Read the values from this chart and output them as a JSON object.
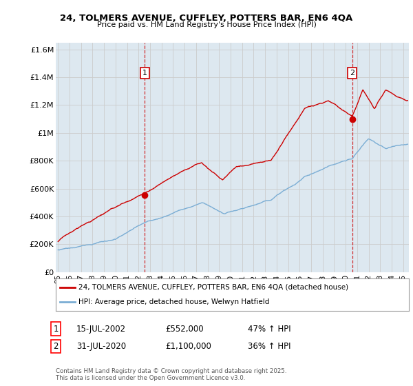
{
  "title_line1": "24, TOLMERS AVENUE, CUFFLEY, POTTERS BAR, EN6 4QA",
  "title_line2": "Price paid vs. HM Land Registry's House Price Index (HPI)",
  "ylabel_ticks": [
    "£0",
    "£200K",
    "£400K",
    "£600K",
    "£800K",
    "£1M",
    "£1.2M",
    "£1.4M",
    "£1.6M"
  ],
  "ylabel_values": [
    0,
    200000,
    400000,
    600000,
    800000,
    1000000,
    1200000,
    1400000,
    1600000
  ],
  "ylim": [
    0,
    1650000
  ],
  "xlim_start": 1994.8,
  "xlim_end": 2025.5,
  "grid_color": "#cccccc",
  "bg_color": "#dde8f0",
  "fig_bg_color": "#ffffff",
  "red_line_color": "#cc0000",
  "blue_line_color": "#7aadd4",
  "dashed_red_color": "#cc0000",
  "marker1_x": 2002.54,
  "marker1_y": 552000,
  "marker1_label": "1",
  "marker2_x": 2020.58,
  "marker2_y": 1100000,
  "marker2_label": "2",
  "legend_line1": "24, TOLMERS AVENUE, CUFFLEY, POTTERS BAR, EN6 4QA (detached house)",
  "legend_line2": "HPI: Average price, detached house, Welwyn Hatfield",
  "annotation1_date": "15-JUL-2002",
  "annotation1_price": "£552,000",
  "annotation1_hpi": "47% ↑ HPI",
  "annotation2_date": "31-JUL-2020",
  "annotation2_price": "£1,100,000",
  "annotation2_hpi": "36% ↑ HPI",
  "footer": "Contains HM Land Registry data © Crown copyright and database right 2025.\nThis data is licensed under the Open Government Licence v3.0.",
  "xtick_labels": [
    "95",
    "96",
    "97",
    "98",
    "99",
    "00",
    "01",
    "02",
    "03",
    "04",
    "05",
    "06",
    "07",
    "08",
    "09",
    "10",
    "11",
    "12",
    "13",
    "14",
    "15",
    "16",
    "17",
    "18",
    "19",
    "20",
    "21",
    "22",
    "23",
    "24",
    "25"
  ],
  "xtick_vals": [
    1995,
    1996,
    1997,
    1998,
    1999,
    2000,
    2001,
    2002,
    2003,
    2004,
    2005,
    2006,
    2007,
    2008,
    2009,
    2010,
    2011,
    2012,
    2013,
    2014,
    2015,
    2016,
    2017,
    2018,
    2019,
    2020,
    2021,
    2022,
    2023,
    2024,
    2025
  ]
}
